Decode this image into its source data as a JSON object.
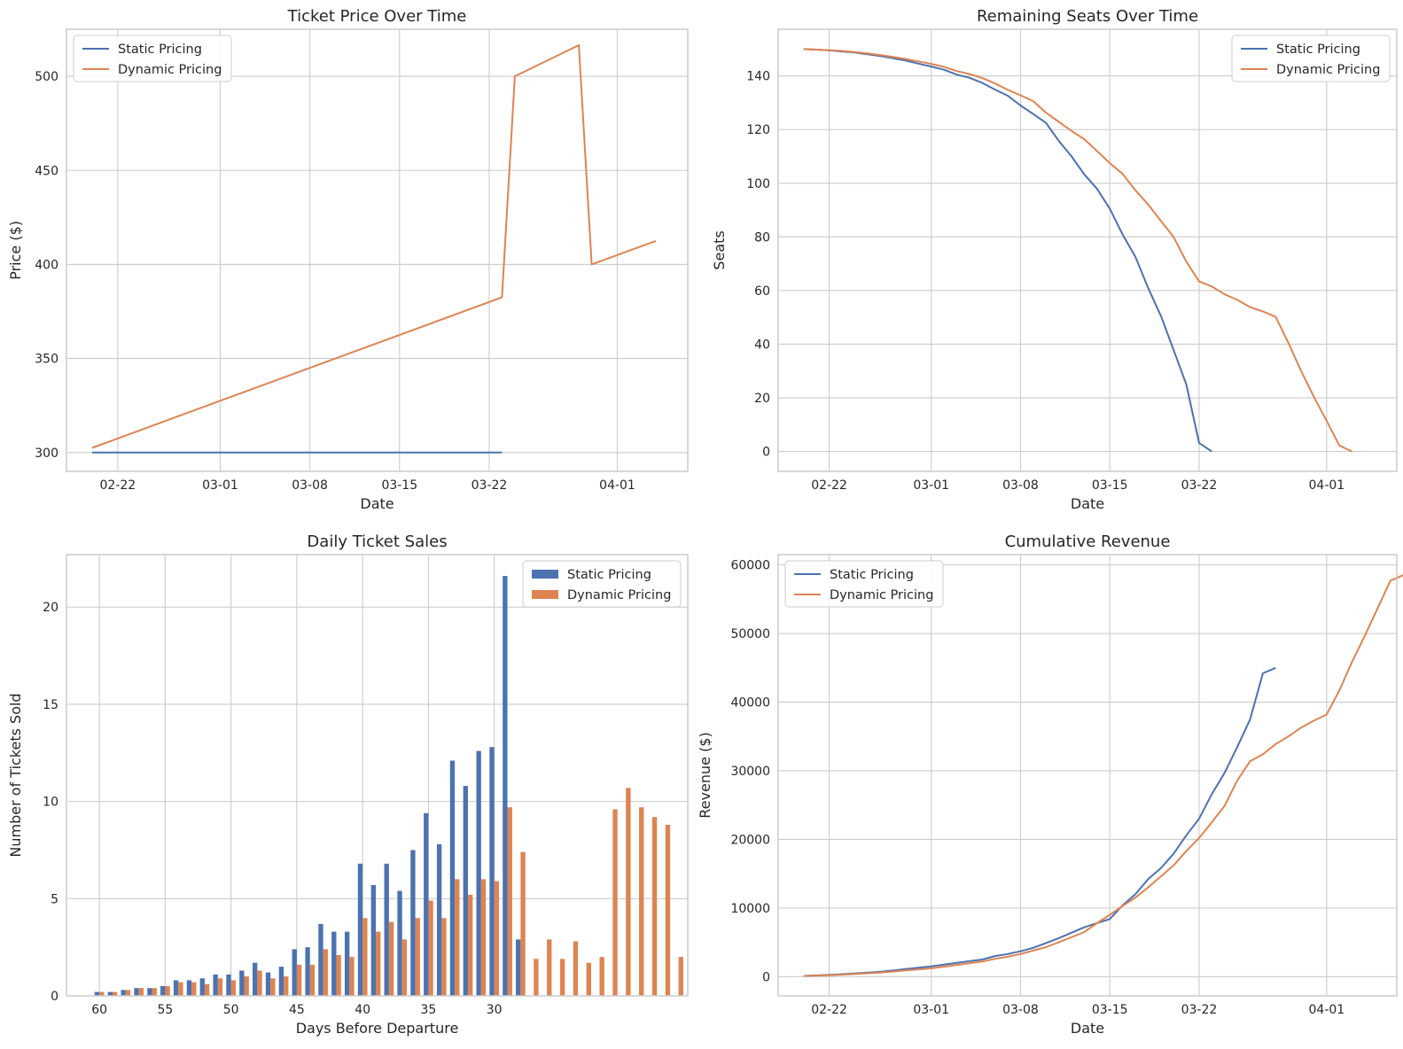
{
  "chart_data": [
    {
      "type": "line",
      "title": "Ticket Price Over Time",
      "xlabel": "Date",
      "ylabel": "Price ($)",
      "x_ticks": [
        "02-22",
        "03-01",
        "03-08",
        "03-15",
        "03-22",
        "04-01"
      ],
      "y_ticks": [
        300,
        350,
        400,
        450,
        500
      ],
      "xlim": [
        -2,
        46.5
      ],
      "ylim": [
        290,
        525
      ],
      "grid": true,
      "legend_position": "upper-left",
      "series": [
        {
          "name": "Static Pricing",
          "color": "#4c72b0",
          "points": [
            [
              0,
              300
            ],
            [
              32,
              300
            ]
          ]
        },
        {
          "name": "Dynamic Pricing",
          "color": "#dd8452",
          "points": [
            [
              0,
              302.5
            ],
            [
              32,
              382.5
            ],
            [
              33,
              500
            ],
            [
              38,
              516.5
            ],
            [
              39,
              400
            ],
            [
              44,
              412.5
            ]
          ]
        }
      ]
    },
    {
      "type": "line",
      "title": "Remaining Seats Over Time",
      "xlabel": "Date",
      "ylabel": "Seats",
      "x_ticks": [
        "02-22",
        "03-01",
        "03-08",
        "03-15",
        "03-22",
        "04-01"
      ],
      "y_ticks": [
        0,
        20,
        40,
        60,
        80,
        100,
        120,
        140
      ],
      "xlim": [
        -2,
        46.5
      ],
      "ylim": [
        -7.4,
        157.4
      ],
      "grid": true,
      "legend_position": "upper-right",
      "series": [
        {
          "name": "Static Pricing",
          "color": "#4c72b0",
          "points": [
            [
              0,
              150
            ],
            [
              1,
              149.8
            ],
            [
              2,
              149.5
            ],
            [
              3,
              149.1
            ],
            [
              4,
              148.7
            ],
            [
              5,
              148.1
            ],
            [
              6,
              147.4
            ],
            [
              7,
              146.6
            ],
            [
              8,
              145.7
            ],
            [
              9,
              144.6
            ],
            [
              10,
              143.5
            ],
            [
              11,
              142.3
            ],
            [
              12,
              140.5
            ],
            [
              13,
              139.3
            ],
            [
              14,
              137.4
            ],
            [
              15,
              134.9
            ],
            [
              16,
              132.6
            ],
            [
              17,
              129
            ],
            [
              18,
              125.8
            ],
            [
              19,
              122.5
            ],
            [
              20,
              115.8
            ],
            [
              21,
              110
            ],
            [
              22,
              103.3
            ],
            [
              23,
              97.9
            ],
            [
              24,
              90.5
            ],
            [
              25,
              80.9
            ],
            [
              26,
              72.6
            ],
            [
              27,
              61
            ],
            [
              28,
              50.6
            ],
            [
              29,
              37.9
            ],
            [
              30,
              25
            ],
            [
              31,
              3.2
            ],
            [
              32,
              0
            ]
          ]
        },
        {
          "name": "Dynamic Pricing",
          "color": "#dd8452",
          "points": [
            [
              0,
              150
            ],
            [
              1,
              149.8
            ],
            [
              2,
              149.6
            ],
            [
              3,
              149.3
            ],
            [
              4,
              148.9
            ],
            [
              5,
              148.4
            ],
            [
              6,
              147.8
            ],
            [
              7,
              147.1
            ],
            [
              8,
              146.3
            ],
            [
              9,
              145.4
            ],
            [
              10,
              144.5
            ],
            [
              11,
              143.4
            ],
            [
              12,
              141.8
            ],
            [
              13,
              140.7
            ],
            [
              14,
              139.2
            ],
            [
              15,
              137.2
            ],
            [
              16,
              134.8
            ],
            [
              17,
              132.8
            ],
            [
              18,
              130.6
            ],
            [
              19,
              126.3
            ],
            [
              20,
              122.9
            ],
            [
              21,
              119.5
            ],
            [
              22,
              116.4
            ],
            [
              23,
              112
            ],
            [
              24,
              107.5
            ],
            [
              25,
              103.5
            ],
            [
              26,
              97.4
            ],
            [
              27,
              92.1
            ],
            [
              28,
              86
            ],
            [
              29,
              80
            ],
            [
              30,
              70.8
            ],
            [
              31,
              63.4
            ],
            [
              32,
              61.5
            ],
            [
              33,
              58.6
            ],
            [
              34,
              56.5
            ],
            [
              35,
              53.8
            ],
            [
              36,
              52.2
            ],
            [
              37,
              50.2
            ],
            [
              38,
              40.5
            ],
            [
              39,
              30
            ],
            [
              40,
              20.3
            ],
            [
              41,
              11.5
            ],
            [
              42,
              2.2
            ],
            [
              43,
              0
            ]
          ]
        }
      ]
    },
    {
      "type": "bar",
      "title": "Daily Ticket Sales",
      "xlabel": "Days Before Departure",
      "ylabel": "Number of Tickets Sold",
      "x_ticks": [
        60,
        55,
        50,
        45,
        40,
        35,
        30
      ],
      "y_ticks": [
        0,
        5,
        10,
        15,
        20
      ],
      "xlim": [
        62.5,
        15.3
      ],
      "ylim": [
        0,
        22.7
      ],
      "grid": true,
      "legend_position": "upper-right",
      "categories": [
        60,
        59,
        58,
        57,
        56,
        55,
        54,
        53,
        52,
        51,
        50,
        49,
        48,
        47,
        46,
        45,
        44,
        43,
        42,
        41,
        40,
        39,
        38,
        37,
        36,
        35,
        34,
        33,
        32,
        31,
        30,
        29,
        28,
        27,
        26,
        25,
        24,
        23,
        22,
        21,
        20,
        19,
        18,
        17,
        16
      ],
      "series": [
        {
          "name": "Static Pricing",
          "color": "#4c72b0",
          "values": [
            0.2,
            0.2,
            0.3,
            0.4,
            0.4,
            0.5,
            0.8,
            0.8,
            0.9,
            1.1,
            1.1,
            1.3,
            1.7,
            1.2,
            1.5,
            2.4,
            2.5,
            3.7,
            3.3,
            3.3,
            6.8,
            5.7,
            6.8,
            5.4,
            7.5,
            9.4,
            7.8,
            12.1,
            10.8,
            12.6,
            12.8,
            21.6,
            2.9,
            null,
            null,
            null,
            null,
            null,
            null,
            null,
            null,
            null,
            null,
            null,
            null
          ]
        },
        {
          "name": "Dynamic Pricing",
          "color": "#dd8452",
          "values": [
            0.2,
            0.2,
            0.3,
            0.4,
            0.4,
            0.5,
            0.7,
            0.7,
            0.6,
            0.9,
            0.8,
            1,
            1.3,
            0.9,
            1,
            1.6,
            1.6,
            2.4,
            2.1,
            2,
            4,
            3.3,
            3.8,
            2.9,
            4,
            4.9,
            4,
            6,
            5.2,
            6,
            5.9,
            9.7,
            7.4,
            1.9,
            2.9,
            1.9,
            2.8,
            1.7,
            2,
            9.6,
            10.7,
            9.7,
            9.2,
            8.8,
            2
          ]
        }
      ]
    },
    {
      "type": "line",
      "title": "Cumulative Revenue",
      "xlabel": "Date",
      "ylabel": "Revenue ($)",
      "x_ticks": [
        "02-22",
        "03-01",
        "03-08",
        "03-15",
        "03-22",
        "04-01"
      ],
      "y_ticks": [
        0,
        10000,
        20000,
        30000,
        40000,
        50000,
        60000
      ],
      "xlim": [
        -2,
        46.5
      ],
      "ylim": [
        -2800,
        61500
      ],
      "grid": true,
      "legend_position": "upper-left",
      "series": [
        {
          "name": "Static Pricing",
          "color": "#4c72b0",
          "points": [
            [
              0,
              100
            ],
            [
              2,
              250
            ],
            [
              4,
              450
            ],
            [
              6,
              700
            ],
            [
              8,
              1100
            ],
            [
              10,
              1500
            ],
            [
              12,
              2000
            ],
            [
              14,
              2500
            ],
            [
              15,
              3000
            ],
            [
              16,
              3300
            ],
            [
              17,
              3700
            ],
            [
              18,
              4200
            ],
            [
              19,
              4900
            ],
            [
              20,
              5600
            ],
            [
              22,
              7200
            ],
            [
              24,
              8400
            ],
            [
              25,
              10400
            ],
            [
              26,
              12000
            ],
            [
              27,
              14200
            ],
            [
              28,
              15800
            ],
            [
              29,
              17900
            ],
            [
              30,
              20600
            ],
            [
              31,
              23000
            ],
            [
              32,
              26600
            ],
            [
              33,
              29700
            ],
            [
              34,
              33500
            ],
            [
              35,
              37500
            ],
            [
              36,
              44200
            ],
            [
              37,
              45000
            ]
          ]
        },
        {
          "name": "Dynamic Pricing",
          "color": "#dd8452",
          "points": [
            [
              0,
              100
            ],
            [
              2,
              200
            ],
            [
              4,
              380
            ],
            [
              6,
              600
            ],
            [
              8,
              900
            ],
            [
              10,
              1200
            ],
            [
              12,
              1700
            ],
            [
              14,
              2200
            ],
            [
              15,
              2600
            ],
            [
              16,
              2900
            ],
            [
              17,
              3300
            ],
            [
              18,
              3800
            ],
            [
              19,
              4300
            ],
            [
              20,
              5000
            ],
            [
              22,
              6500
            ],
            [
              23,
              7800
            ],
            [
              24,
              9000
            ],
            [
              25,
              10300
            ],
            [
              26,
              11500
            ],
            [
              27,
              13000
            ],
            [
              28,
              14600
            ],
            [
              29,
              16200
            ],
            [
              30,
              18300
            ],
            [
              31,
              20200
            ],
            [
              32,
              22500
            ],
            [
              33,
              24900
            ],
            [
              34,
              28600
            ],
            [
              35,
              31400
            ],
            [
              36,
              32400
            ],
            [
              37,
              33900
            ],
            [
              38,
              35000
            ],
            [
              39,
              36300
            ],
            [
              40,
              37300
            ],
            [
              41,
              38200
            ],
            [
              42,
              41700
            ],
            [
              43,
              45900
            ],
            [
              44,
              49700
            ],
            [
              45,
              53700
            ],
            [
              46,
              57700
            ],
            [
              47,
              58500
            ]
          ]
        }
      ]
    }
  ]
}
